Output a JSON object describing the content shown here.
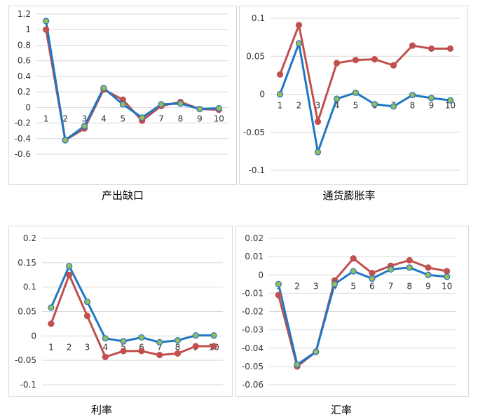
{
  "colors": {
    "red": "#C0504D",
    "blue": "#1F77C4",
    "marker_blue": "#9BBB59",
    "grid": "#D9D9D9",
    "border": "#D9D9D9"
  },
  "chart_data": [
    {
      "type": "line",
      "caption": "产出缺口",
      "categories": [
        "1",
        "2",
        "3",
        "4",
        "5",
        "6",
        "7",
        "8",
        "9",
        "10"
      ],
      "ylim": [
        -0.6,
        1.2
      ],
      "yticks": [
        1.2,
        1,
        0.8,
        0.6,
        0.4,
        0.2,
        0,
        -0.2,
        -0.4,
        -0.6
      ],
      "grid": true,
      "series": [
        {
          "color": "red",
          "values": [
            1.0,
            -0.42,
            -0.27,
            0.23,
            0.1,
            -0.17,
            0.02,
            0.07,
            -0.02,
            -0.03
          ]
        },
        {
          "color": "blue",
          "values": [
            1.11,
            -0.42,
            -0.24,
            0.25,
            0.04,
            -0.13,
            0.04,
            0.05,
            -0.02,
            -0.01
          ]
        }
      ]
    },
    {
      "type": "line",
      "caption": "通货膨胀率",
      "categories": [
        "1",
        "2",
        "3",
        "4",
        "5",
        "6",
        "7",
        "8",
        "9",
        "10"
      ],
      "ylim": [
        -0.1,
        0.1
      ],
      "yticks": [
        0.1,
        0.05,
        0,
        -0.05,
        -0.1
      ],
      "grid": true,
      "series": [
        {
          "color": "red",
          "values": [
            0.026,
            0.091,
            -0.036,
            0.041,
            0.045,
            0.046,
            0.038,
            0.064,
            0.06,
            0.06
          ]
        },
        {
          "color": "blue",
          "values": [
            0.0,
            0.067,
            -0.076,
            -0.006,
            0.002,
            -0.013,
            -0.016,
            -0.001,
            -0.005,
            -0.008
          ]
        }
      ]
    },
    {
      "type": "line",
      "caption": "利率",
      "categories": [
        "1",
        "2",
        "3",
        "4",
        "5",
        "6",
        "7",
        "8",
        "9",
        "10"
      ],
      "ylim": [
        -0.1,
        0.2
      ],
      "yticks": [
        0.2,
        0.15,
        0.1,
        0.05,
        0,
        -0.05,
        -0.1
      ],
      "grid": true,
      "series": [
        {
          "color": "red",
          "values": [
            0.025,
            0.125,
            0.041,
            -0.043,
            -0.031,
            -0.031,
            -0.039,
            -0.036,
            -0.021,
            -0.021
          ]
        },
        {
          "color": "blue",
          "values": [
            0.058,
            0.143,
            0.07,
            -0.005,
            -0.011,
            -0.003,
            -0.013,
            -0.009,
            0.001,
            0.001
          ]
        }
      ]
    },
    {
      "type": "line",
      "caption": "汇率",
      "categories": [
        "1",
        "2",
        "3",
        "4",
        "5",
        "6",
        "7",
        "8",
        "9",
        "10"
      ],
      "ylim": [
        -0.06,
        0.02
      ],
      "yticks": [
        0.02,
        0.01,
        0,
        -0.01,
        -0.02,
        -0.03,
        -0.04,
        -0.05,
        -0.06
      ],
      "grid": true,
      "series": [
        {
          "color": "red",
          "values": [
            -0.011,
            -0.05,
            -0.042,
            -0.003,
            0.009,
            0.001,
            0.005,
            0.008,
            0.004,
            0.002
          ]
        },
        {
          "color": "blue",
          "values": [
            -0.005,
            -0.049,
            -0.042,
            -0.005,
            0.002,
            -0.002,
            0.003,
            0.004,
            0.0,
            -0.001
          ]
        }
      ]
    }
  ]
}
